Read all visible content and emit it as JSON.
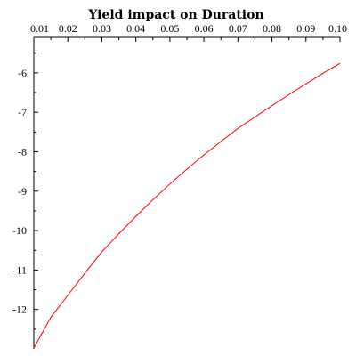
{
  "chart_data": {
    "type": "line",
    "title": "Yield impact on Duration",
    "xlabel": "",
    "ylabel": "",
    "xlim": [
      0.01,
      0.1
    ],
    "ylim": [
      -13.0,
      -5.1
    ],
    "x_ticks": [
      "0.01",
      "0.02",
      "0.03",
      "0.04",
      "0.05",
      "0.06",
      "0.07",
      "0.08",
      "0.09",
      "0.10"
    ],
    "x_tick_values": [
      0.01,
      0.02,
      0.03,
      0.04,
      0.05,
      0.06,
      0.07,
      0.08,
      0.09,
      0.1
    ],
    "y_ticks": [
      "-6",
      "-7",
      "-8",
      "-9",
      "-10",
      "-11",
      "-12"
    ],
    "y_tick_values": [
      -6,
      -7,
      -8,
      -9,
      -10,
      -11,
      -12
    ],
    "x_axis_position": "top",
    "grid": false,
    "legend": "none",
    "line_color": "#ff0000",
    "series": [
      {
        "x": [
          0.01,
          0.015,
          0.02,
          0.025,
          0.03,
          0.035,
          0.04,
          0.045,
          0.05,
          0.055,
          0.06,
          0.065,
          0.07,
          0.075,
          0.08,
          0.085,
          0.09,
          0.095,
          0.1
        ],
        "values": [
          -12.98,
          -12.2,
          -11.64,
          -11.08,
          -10.54,
          -10.08,
          -9.64,
          -9.22,
          -8.82,
          -8.44,
          -8.08,
          -7.74,
          -7.41,
          -7.12,
          -6.83,
          -6.55,
          -6.28,
          -6.01,
          -5.76
        ]
      }
    ]
  }
}
